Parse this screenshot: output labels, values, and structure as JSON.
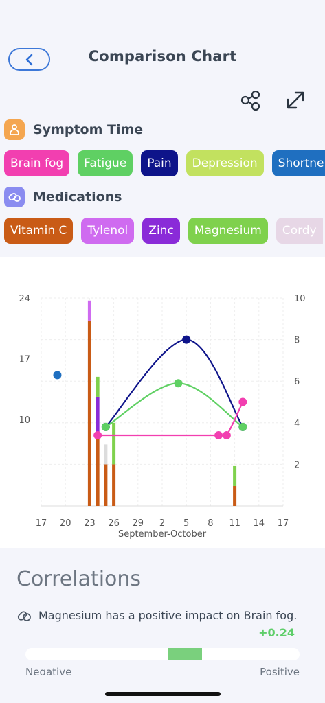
{
  "header": {
    "title": "Comparison Chart"
  },
  "symptoms": {
    "label": "Symptom Time",
    "chips": [
      {
        "label": "Brain fog",
        "color": "#f23fb0"
      },
      {
        "label": "Fatigue",
        "color": "#5fd063"
      },
      {
        "label": "Pain",
        "color": "#0e148a"
      },
      {
        "label": "Depression",
        "color": "#c2e15f"
      },
      {
        "label": "Shortne",
        "color": "#1f6fc0"
      }
    ]
  },
  "medications": {
    "label": "Medications",
    "chips": [
      {
        "label": "Vitamin C",
        "color": "#c95b16"
      },
      {
        "label": "Tylenol",
        "color": "#cf6bf0"
      },
      {
        "label": "Zinc",
        "color": "#8a2bd8"
      },
      {
        "label": "Magnesium",
        "color": "#7fd14d"
      },
      {
        "label": "Cordy",
        "color": "#e7d7e6"
      }
    ]
  },
  "chart_data": {
    "type": "bar+line",
    "xlabel": "September-October",
    "x_ticks": [
      "17",
      "20",
      "23",
      "26",
      "29",
      "2",
      "5",
      "8",
      "11",
      "14",
      "17"
    ],
    "left_axis": {
      "ticks": [
        "24",
        "17",
        "10"
      ],
      "ylim": [
        0,
        24
      ]
    },
    "right_axis": {
      "ticks": [
        "10",
        "8",
        "6",
        "4",
        "2"
      ],
      "ylim": [
        0,
        10
      ]
    },
    "grid": true,
    "bars": [
      {
        "x": 23,
        "segments": [
          {
            "name": "Vitamin C",
            "value": 21.4,
            "color": "#c95b16"
          },
          {
            "name": "Tylenol",
            "value": 2.3,
            "color": "#cf6bf0"
          }
        ]
      },
      {
        "x": 24,
        "segments": [
          {
            "name": "Vitamin C",
            "value": 7.8,
            "color": "#c95b16"
          },
          {
            "name": "Zinc",
            "value": 4.8,
            "color": "#8a2bd8"
          },
          {
            "name": "Magnesium",
            "value": 2.3,
            "color": "#7fd14d"
          }
        ]
      },
      {
        "x": 25,
        "segments": [
          {
            "name": "Vitamin C",
            "value": 4.8,
            "color": "#c95b16"
          },
          {
            "name": "Cordy",
            "value": 2.3,
            "color": "#dcdcdc"
          }
        ]
      },
      {
        "x": 26,
        "segments": [
          {
            "name": "Vitamin C",
            "value": 4.8,
            "color": "#c95b16"
          },
          {
            "name": "Magnesium",
            "value": 4.8,
            "color": "#7fd14d"
          }
        ]
      },
      {
        "x": 41,
        "segments": [
          {
            "name": "Vitamin C",
            "value": 2.3,
            "color": "#c95b16"
          },
          {
            "name": "Magnesium",
            "value": 2.3,
            "color": "#7fd14d"
          }
        ]
      }
    ],
    "series": [
      {
        "name": "Shortne",
        "color": "#1f6fc0",
        "axis": "left",
        "points": [
          [
            19,
            15.1
          ]
        ]
      },
      {
        "name": "Pain",
        "color": "#0e148a",
        "axis": "right",
        "points": [
          [
            25,
            3.8
          ],
          [
            35,
            8.0
          ],
          [
            42,
            3.8
          ]
        ]
      },
      {
        "name": "Fatigue",
        "color": "#5fd063",
        "axis": "right",
        "points": [
          [
            25,
            3.8
          ],
          [
            34,
            5.9
          ],
          [
            42,
            3.8
          ]
        ]
      },
      {
        "name": "Brain fog",
        "color": "#f23fb0",
        "axis": "right",
        "points": [
          [
            24,
            3.4
          ],
          [
            39,
            3.4
          ],
          [
            40,
            3.4
          ],
          [
            42,
            5.0
          ]
        ]
      }
    ]
  },
  "correlations": {
    "title": "Correlations",
    "items": [
      {
        "text": "Magnesium has a positive impact on Brain fog.",
        "value": "+0.24",
        "score": 0.24
      }
    ],
    "negative_label": "Negative",
    "positive_label": "Positive"
  }
}
